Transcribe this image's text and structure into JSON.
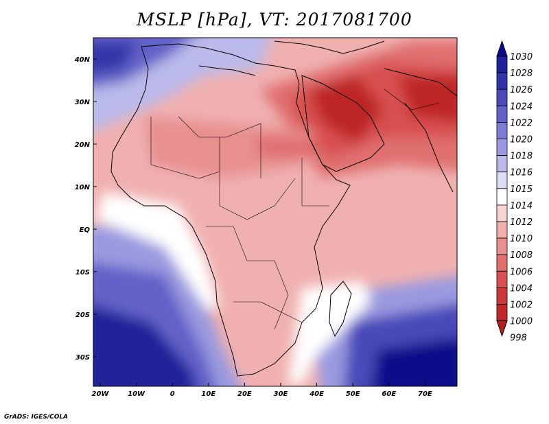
{
  "title": "MSLP [hPa], VT: 2017081700",
  "credit": "GrADS: IGES/COLA",
  "x_ticks": [
    "20W",
    "10W",
    "0",
    "10E",
    "20E",
    "30E",
    "40E",
    "50E",
    "60E",
    "70E"
  ],
  "y_ticks": [
    "40N",
    "30N",
    "20N",
    "10N",
    "EQ",
    "10S",
    "20S",
    "30S"
  ],
  "colorbar_labels": [
    "1030",
    "1028",
    "1026",
    "1024",
    "1022",
    "1020",
    "1018",
    "1016",
    "1015",
    "1014",
    "1012",
    "1010",
    "1008",
    "1006",
    "1004",
    "1002",
    "1000",
    "998"
  ],
  "colorbar_colors": [
    "#0c0c8a",
    "#20209a",
    "#3434aa",
    "#4a4ab9",
    "#6262c8",
    "#7c7cd5",
    "#9a9ae0",
    "#babaeb",
    "#dcdcf5",
    "#ffffff",
    "#f7d4d4",
    "#f0b0b0",
    "#e89090",
    "#e07070",
    "#d85050",
    "#cc3838",
    "#be2828",
    "#b02020"
  ],
  "colors": {
    "high_pressure": "#1a1a90",
    "low_pressure": "#b52222",
    "neutral": "#ffffff"
  }
}
